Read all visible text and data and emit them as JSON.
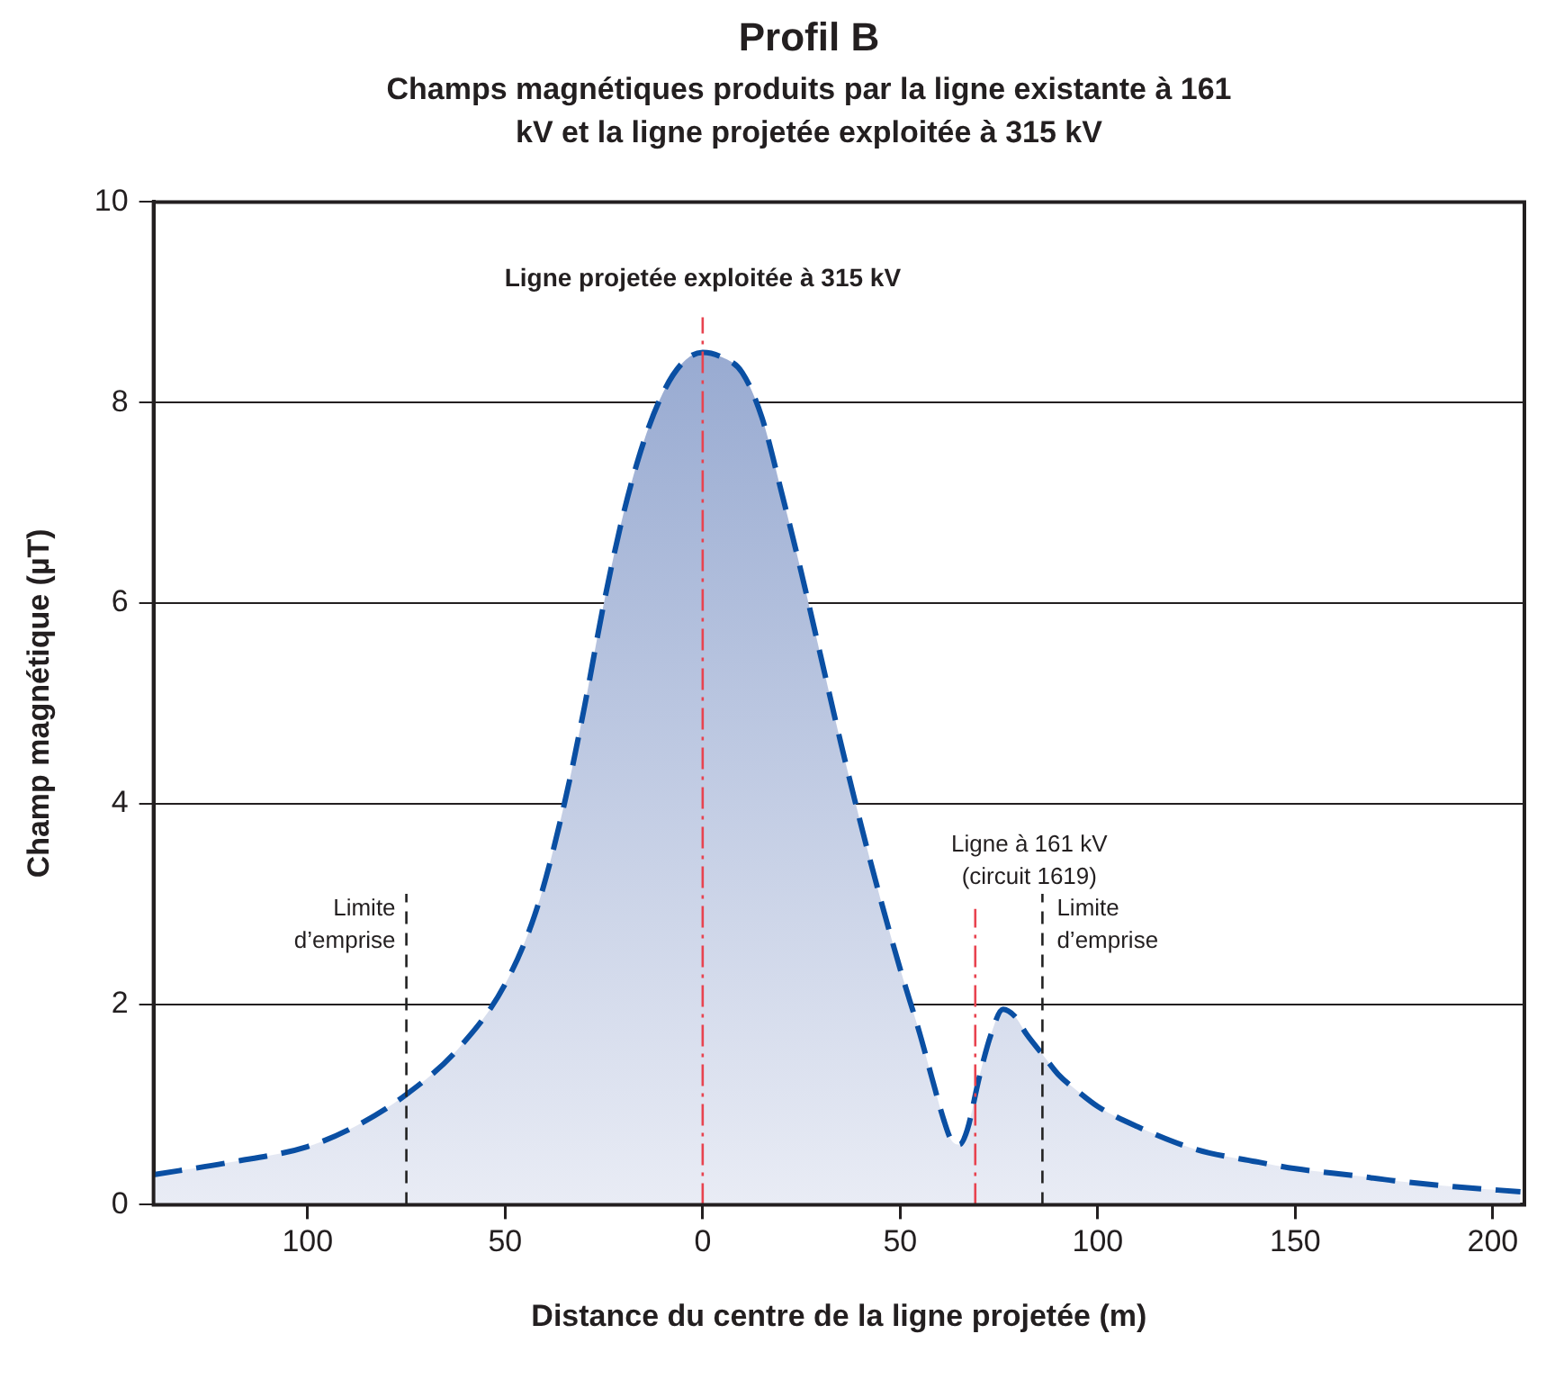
{
  "chart_data": {
    "type": "area",
    "title": "Profil B",
    "subtitle": "Champs magnétiques produits par la ligne existante à 161 kV et la ligne projetée exploitée à 315 kV",
    "xlabel": "Distance du centre de la ligne projetée (m)",
    "ylabel": "Champ magnétique (µT)",
    "series": [
      {
        "color": "#0a4fa3",
        "x": [
          -139,
          -120,
          -100,
          -88,
          -75,
          -62,
          -50,
          -42,
          -35,
          -30,
          -25,
          -20,
          -15,
          -10,
          -5,
          0,
          5,
          10,
          15,
          20,
          25,
          30,
          35,
          40,
          45,
          50,
          55,
          58,
          61,
          63,
          65,
          67,
          70,
          73,
          76,
          79,
          82,
          86,
          90,
          95,
          100,
          110,
          125,
          140,
          150,
          165,
          175,
          190,
          207
        ],
        "values": [
          0.3,
          0.42,
          0.58,
          0.78,
          1.1,
          1.55,
          2.2,
          2.95,
          4.0,
          4.95,
          6.0,
          6.9,
          7.6,
          8.1,
          8.4,
          8.5,
          8.45,
          8.3,
          7.85,
          7.1,
          6.3,
          5.45,
          4.6,
          3.8,
          3.05,
          2.35,
          1.7,
          1.27,
          0.85,
          0.64,
          0.6,
          0.75,
          1.27,
          1.7,
          1.95,
          1.88,
          1.7,
          1.5,
          1.3,
          1.13,
          0.98,
          0.78,
          0.55,
          0.43,
          0.36,
          0.29,
          0.24,
          0.18,
          0.13
        ]
      }
    ],
    "xlim": [
      -139,
      208
    ],
    "xticks": [
      {
        "value": -100,
        "label": "100"
      },
      {
        "value": -50,
        "label": "50"
      },
      0,
      50,
      100,
      150,
      200
    ],
    "ylim": [
      0,
      10
    ],
    "yticks": [
      0,
      2,
      4,
      6,
      8,
      10
    ],
    "grid": "y",
    "legend": false,
    "marker": "none",
    "line_style": "dashed",
    "ref_lines": [
      {
        "axis": "x",
        "value": 0,
        "label": "Ligne projetée exploitée à 315 kV",
        "color": "#e8434f",
        "line_style": "dashed"
      },
      {
        "axis": "x",
        "value": 69,
        "label": "Ligne à 161 kV (circuit 1619)",
        "color": "#e8434f",
        "line_style": "dashed"
      },
      {
        "axis": "x",
        "value": -75,
        "label": "Limite d’emprise",
        "color": "#222222",
        "line_style": "dashed"
      },
      {
        "axis": "x",
        "value": 86,
        "label": "Limite d’emprise",
        "color": "#222222",
        "line_style": "dashed"
      }
    ]
  }
}
